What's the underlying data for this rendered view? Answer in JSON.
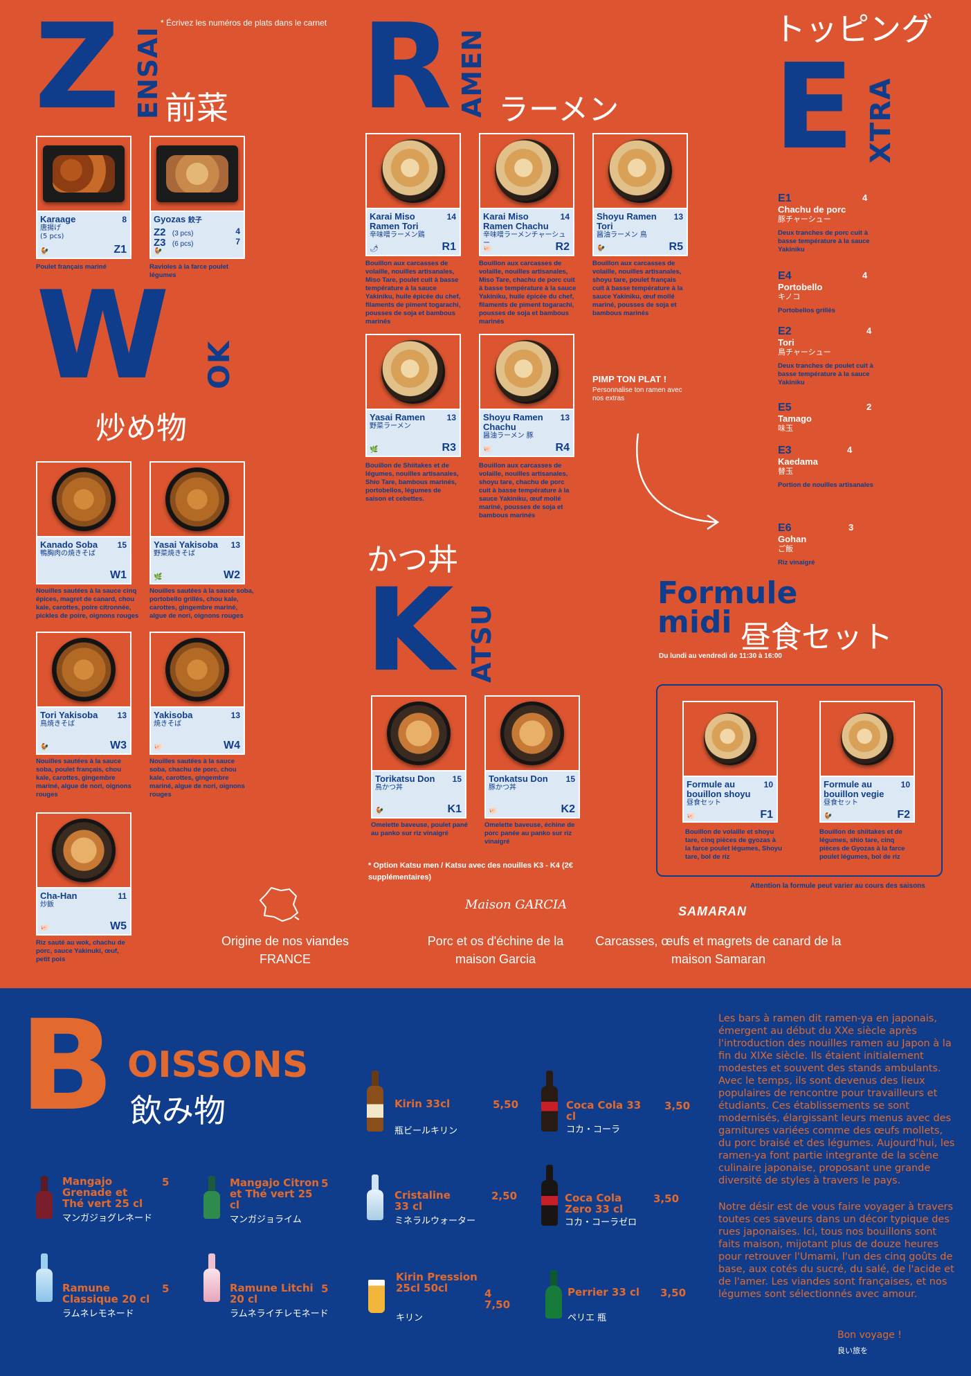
{
  "note_top": "* Écrivez les numéros de plats dans le carnet",
  "zensai": {
    "letter": "Z",
    "word": "ENSAI",
    "jp": "前菜"
  },
  "wok": {
    "letter": "W",
    "word": "OK",
    "jp": "炒め物"
  },
  "ramen": {
    "letter": "R",
    "word": "AMEN",
    "jp": "ラーメン"
  },
  "extra": {
    "letter": "E",
    "word": "XTRA",
    "jp": "トッピング"
  },
  "katsu": {
    "letter": "K",
    "word": "ATSU",
    "jp": "かつ丼"
  },
  "boissons": {
    "letter": "B",
    "word": "OISSONS",
    "jp": "飲み物"
  },
  "dishes": {
    "z1": {
      "name": "Karaage",
      "price": "8",
      "jp": "唐揚げ",
      "sub": "(5 pcs)",
      "code": "Z1",
      "desc": "Poulet français mariné"
    },
    "z2": {
      "name": "Gyozas",
      "jp": "餃子",
      "l1": "Z2",
      "l1s": "(3 pcs)",
      "l1p": "4",
      "l2": "Z3",
      "l2s": "(6 pcs)",
      "l2p": "7",
      "desc": "Ravioles à la farce poulet légumes"
    },
    "w1": {
      "name": "Kanado Soba",
      "price": "15",
      "jp": "鴨胸肉の焼きそば",
      "code": "W1",
      "desc": "Nouilles sautées à la sauce cinq épices, magret de canard, chou kale, carottes, poire citronnée, pickles de poire, oignons rouges"
    },
    "w2": {
      "name": "Yasai Yakisoba",
      "price": "13",
      "jp": "野菜焼きそば",
      "code": "W2",
      "desc": "Nouilles sautées à la sauce soba, portobello grillés, chou kale, carottes, gingembre mariné, algue de nori, oignons rouges"
    },
    "w3": {
      "name": "Tori Yakisoba",
      "price": "13",
      "jp": "鳥焼きそば",
      "code": "W3",
      "desc": "Nouilles sautées à la sauce soba, poulet français, chou kale, carottes, gingembre mariné, algue de nori, oignons rouges"
    },
    "w4": {
      "name": "Yakisoba",
      "price": "13",
      "jp": "焼きそば",
      "code": "W4",
      "desc": "Nouilles sautées à la sauce soba, chachu de porc, chou kale, carottes, gingembre mariné, algue de nori, oignons rouges"
    },
    "w5": {
      "name": "Cha-Han",
      "price": "11",
      "jp": "炒飯",
      "code": "W5",
      "desc": "Riz sauté au wok, chachu de porc, sauce Yakinuki, œuf, petit pois"
    },
    "r1": {
      "name": "Karai Miso Ramen Tori",
      "price": "14",
      "jp": "辛味噌ラーメン鶏",
      "code": "R1",
      "desc": "Bouillon aux carcasses de volaille, nouilles artisanales, Miso Tare, poulet cuit à basse température à la sauce Yakiniku, huile épicée du chef, filaments de piment togarachi, pousses de soja et bambous marinés"
    },
    "r2": {
      "name": "Karai Miso Ramen Chachu",
      "price": "14",
      "jp": "辛味噌ラーメンチャーシュー",
      "code": "R2",
      "desc": "Bouillon aux carcasses de volaille, nouilles artisanales, Miso Tare, chachu de porc cuit à basse température à la sauce Yakiniku, huile épicée du chef, filaments de piment togarachi, pousses de soja et bambous marinés"
    },
    "r5": {
      "name": "Shoyu Ramen Tori",
      "price": "13",
      "jp": "醤油ラーメン 鳥",
      "code": "R5",
      "desc": "Bouillon aux carcasses de volaille, nouilles artisanales, shoyu tare, poulet français cuit à basse température à la sauce Yakiniku, œuf mollé mariné, pousses de soja et bambous marinés"
    },
    "r3": {
      "name": "Yasai Ramen",
      "price": "13",
      "jp": "野菜ラーメン",
      "code": "R3",
      "desc": "Bouillon de Shiitakes et de légumes, nouilles artisanales, Shio Tare, bambous marinés, portobellos, légumes de saison et cebettes."
    },
    "r4": {
      "name": "Shoyu Ramen Chachu",
      "price": "13",
      "jp": "醤油ラーメン 豚",
      "code": "R4",
      "desc": "Bouillon aux carcasses de volaille, nouilles artisanales, shoyu tare, chachu de porc cuit à basse température à la sauce Yakiniku, œuf mollé mariné, pousses de soja et bambous marinés"
    },
    "k1": {
      "name": "Torikatsu Don",
      "price": "15",
      "jp": "鳥かつ丼",
      "code": "K1",
      "desc": "Omelette baveuse, poulet pané au panko sur riz vinaigré"
    },
    "k2": {
      "name": "Tonkatsu Don",
      "price": "15",
      "jp": "豚かつ丼",
      "code": "K2",
      "desc": "Omelette baveuse, échine de porc panée au panko sur riz vinaigré"
    },
    "f1": {
      "name": "Formule au bouillon shoyu",
      "price": "10",
      "jp": "昼食セット",
      "code": "F1",
      "desc": "Bouillon de volaille et shoyu tare, cinq pièces de gyozas à la farce poulet légumes, Shoyu tare, bol de riz"
    },
    "f2": {
      "name": "Formule au bouillon vegie",
      "price": "10",
      "jp": "昼食セット",
      "code": "F2",
      "desc": "Bouillon de shiitakes et de légumes, shio tare, cinq pièces de Gyozas à la farce poulet légumes, bol de riz"
    }
  },
  "pimp": {
    "title": "PIMP TON PLAT !",
    "sub": "Personnalise ton ramen avec nos extras"
  },
  "extras": [
    {
      "code": "E1",
      "price": "4",
      "name": "Chachu de porc",
      "jp": "豚チャーシュー",
      "desc": "Deux tranches de porc cuit à basse température à la sauce Yakiniku"
    },
    {
      "code": "E4",
      "price": "4",
      "name": "Portobello",
      "jp": "キノコ",
      "desc": "Portobellos grillés"
    },
    {
      "code": "E2",
      "price": "4",
      "name": "Tori",
      "jp": "鳥チャーシュー",
      "desc": "Deux tranches de poulet cuit à basse température à la sauce Yakiniku"
    },
    {
      "code": "E5",
      "price": "2",
      "name": "Tamago",
      "jp": "味玉",
      "desc": ""
    },
    {
      "code": "E3",
      "price": "4",
      "name": "Kaedama",
      "jp": "替玉",
      "desc": "Portion de nouilles artisanales"
    },
    {
      "code": "E6",
      "price": "3",
      "name": "Gohan",
      "jp": "ご飯",
      "desc": "Riz vinaigré"
    }
  ],
  "katsu_note": "* Option Katsu men / Katsu avec des nouilles K3 - K4 (2€ supplémentaires)",
  "formule": {
    "title1": "Formule",
    "title2": "midi",
    "jp": "昼食セット",
    "hours": "Du lundi au vendredi de 11:30 à 16:00",
    "note": "Attention la formule peut varier au cours des saisons"
  },
  "origins": [
    {
      "label": "Origine de nos viandes FRANCE"
    },
    {
      "brand": "Maison GARCIA",
      "label": "Porc et os d'échine de la maison Garcia"
    },
    {
      "brand": "SAMARAN",
      "label": "Carcasses, œufs et magrets de canard de la maison Samaran"
    }
  ],
  "drinks": [
    {
      "name": "Mangajo Grenade et Thé vert 25 cl",
      "price": "5",
      "jp": "マンガジョグレネード"
    },
    {
      "name": "Mangajo Citron et Thé vert 25 cl",
      "price": "5",
      "jp": "マンガジョライム"
    },
    {
      "name": "Ramune Classique 20 cl",
      "price": "5",
      "jp": "ラムネレモネード"
    },
    {
      "name": "Ramune Litchi 20 cl",
      "price": "5",
      "jp": "ラムネライチレモネード"
    },
    {
      "name": "Kirin 33cl",
      "price": "5,50",
      "jp": "瓶ビールキリン"
    },
    {
      "name": "Cristaline 33 cl",
      "price": "2,50",
      "jp": "ミネラルウォーター"
    },
    {
      "name": "Kirin Pression 25cl 50cl",
      "price": "4 7,50",
      "jp": "キリン"
    },
    {
      "name": "Coca Cola 33 cl",
      "price": "3,50",
      "jp": "コカ・コーラ"
    },
    {
      "name": "Coca Cola Zero 33 cl",
      "price": "3,50",
      "jp": "コカ・コーラゼロ"
    },
    {
      "name": "Perrier 33 cl",
      "price": "3,50",
      "jp": "ペリエ 瓶"
    }
  ],
  "history": {
    "p1": "Les bars à ramen dit ramen-ya en japonais, émergent au début du XXe siècle après l'introduction des nouilles ramen au Japon à la fin du XIXe siècle. Ils étaient initialement modestes et souvent des stands ambulants. Avec le temps, ils sont devenus des lieux populaires de rencontre pour travailleurs et étudiants. Ces établissements se sont modernisés, élargissant leurs menus avec des garnitures variées comme des œufs mollets, du porc braisé et des légumes. Aujourd'hui, les ramen-ya font partie integrante de la scène culinaire japonaise, proposant une grande diversité de styles à travers le pays.",
    "p2": "Notre désir est de vous faire voyager à travers toutes ces saveurs dans un décor typique des rues japonaises. Ici, tous nos bouillons sont faits maison, mijotant plus de douze heures pour retrouver l'Umami, l'un des cinq goûts de base, aux cotés du sucré, du salé, de l'acide et de l'amer. Les viandes sont françaises, et nos légumes sont sélectionnés avec amour.",
    "bon": "Bon voyage !",
    "bon_jp": "良い旅を"
  }
}
